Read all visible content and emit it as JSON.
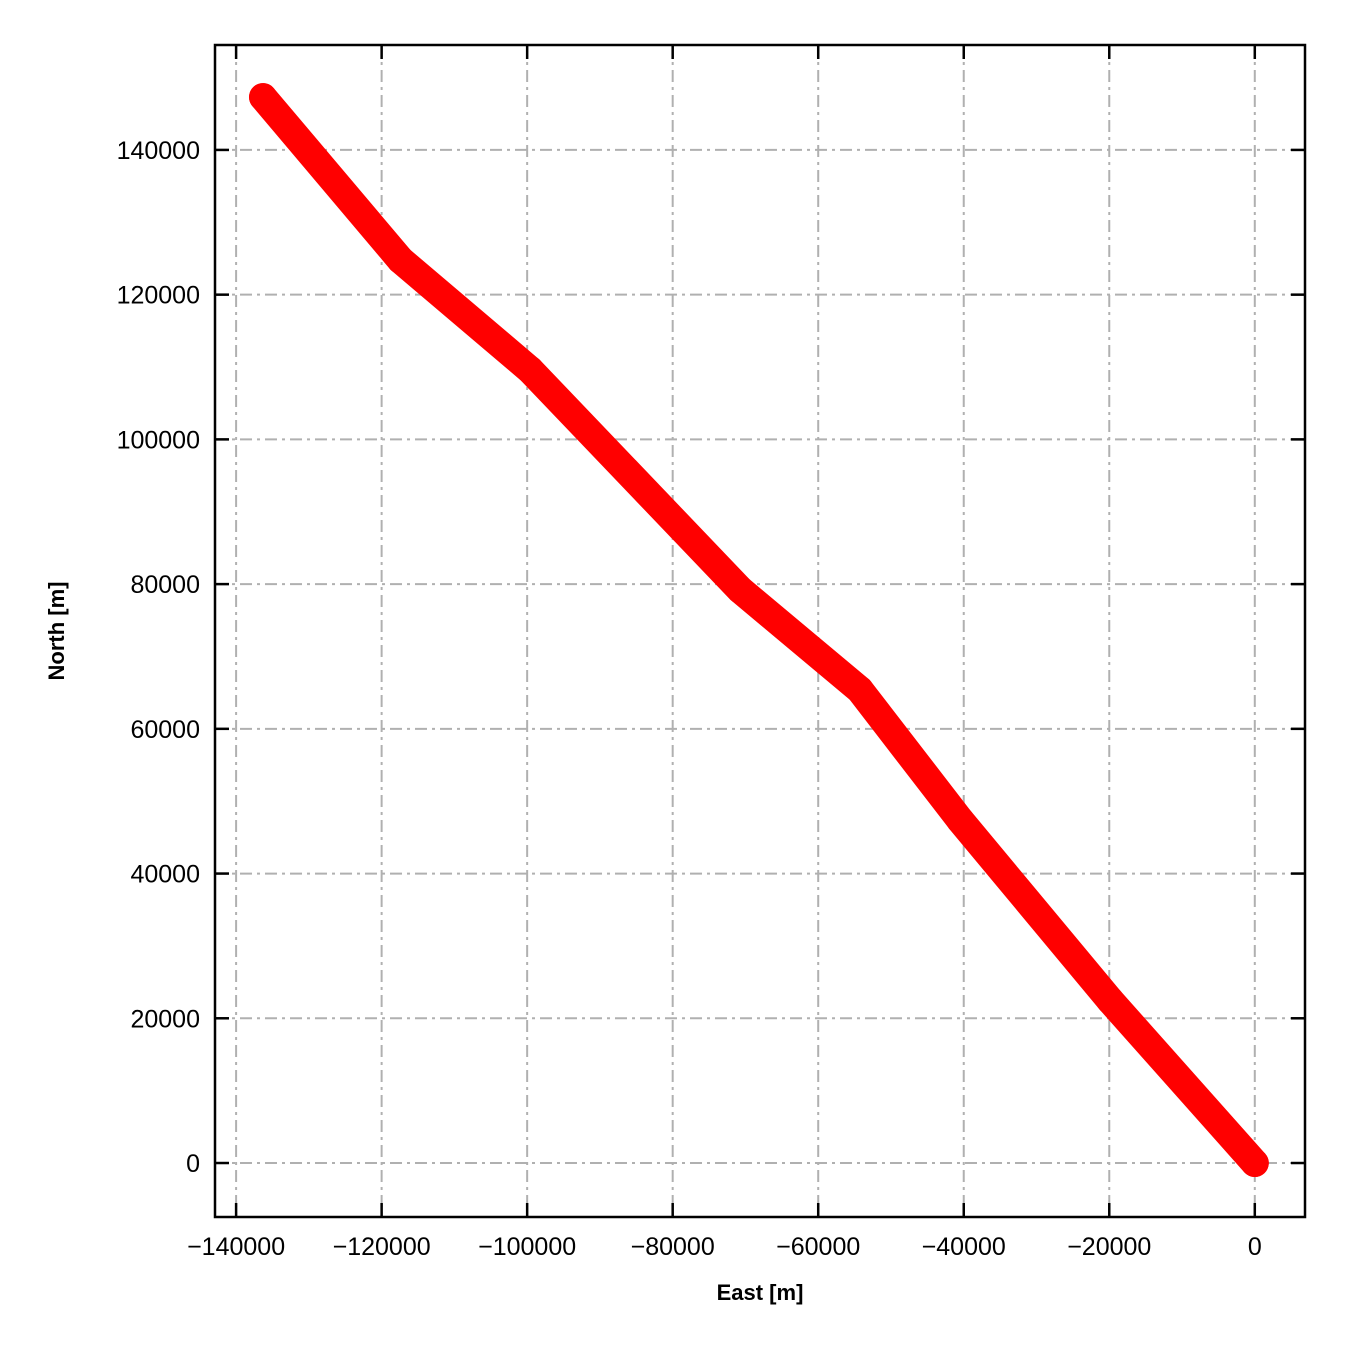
{
  "chart_data": {
    "type": "line",
    "title": "",
    "xlabel": "East [m]",
    "ylabel": "North [m]",
    "xlim": [
      -142900,
      6900
    ],
    "ylim": [
      -7460,
      154500
    ],
    "xticks": [
      -140000,
      -120000,
      -100000,
      -80000,
      -60000,
      -40000,
      -20000,
      0
    ],
    "yticks": [
      0,
      20000,
      40000,
      60000,
      80000,
      100000,
      120000,
      140000
    ],
    "xtick_labels": [
      "−140000",
      "−120000",
      "−100000",
      "−80000",
      "−60000",
      "−40000",
      "−20000",
      "0"
    ],
    "ytick_labels": [
      "0",
      "20000",
      "40000",
      "60000",
      "80000",
      "100000",
      "120000",
      "140000"
    ],
    "grid": true,
    "grid_style": "dash-dot",
    "tick_direction": "in",
    "series": [
      {
        "color": "#ff0000",
        "x": [
          0,
          -19900,
          -40500,
          -54300,
          -70700,
          -99600,
          -117400,
          -136300
        ],
        "y": [
          0,
          22500,
          47400,
          65400,
          79200,
          109600,
          124800,
          147300
        ]
      }
    ]
  }
}
